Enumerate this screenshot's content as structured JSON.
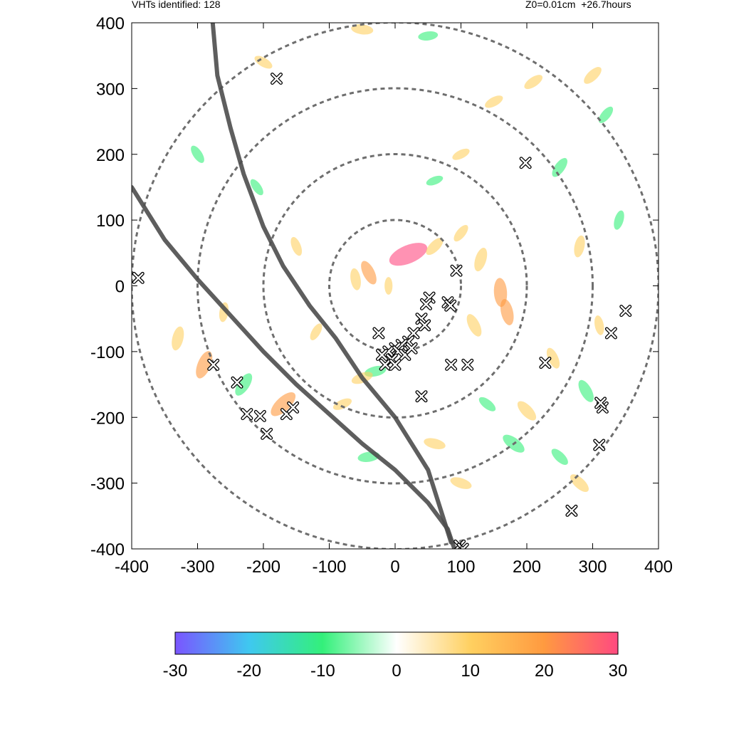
{
  "header": {
    "left": "VHTs identified: 128",
    "right": "Z0=0.01cm  +26.7hours"
  },
  "chart_data": {
    "type": "scatter",
    "title": "",
    "xlabel": "",
    "ylabel": "",
    "xlim": [
      -400,
      400
    ],
    "ylim": [
      -400,
      400
    ],
    "xticks": [
      "-400",
      "-300",
      "-200",
      "-100",
      "0",
      "100",
      "200",
      "300",
      "400"
    ],
    "yticks": [
      "400",
      "300",
      "200",
      "100",
      "0",
      "-100",
      "-200",
      "-300",
      "-400"
    ],
    "range_rings_radius": [
      100,
      200,
      300,
      400
    ],
    "grid": false,
    "colorbar": {
      "min": -30,
      "max": 30,
      "ticks": [
        "-30",
        "-20",
        "-10",
        "0",
        "10",
        "20",
        "30"
      ],
      "colors": [
        "#7a55ff",
        "#3fc8f0",
        "#33f07a",
        "#ffffff",
        "#ffd060",
        "#ff9a40",
        "#ff4a80"
      ]
    },
    "tracks": [
      {
        "x": [
          -277,
          -270,
          -250,
          -230,
          -200,
          -170,
          -130,
          -90,
          -50,
          0,
          50,
          85
        ],
        "y": [
          400,
          320,
          240,
          170,
          90,
          30,
          -30,
          -80,
          -140,
          -200,
          -280,
          -390
        ]
      },
      {
        "x": [
          -400,
          -350,
          -300,
          -250,
          -200,
          -150,
          -100,
          -50,
          0,
          50,
          80,
          90
        ],
        "y": [
          150,
          70,
          10,
          -45,
          -100,
          -150,
          -195,
          -240,
          -280,
          -330,
          -370,
          -400
        ]
      }
    ],
    "vht_markers": {
      "count": 128,
      "points": [
        {
          "x": -180,
          "y": 315
        },
        {
          "x": 198,
          "y": 187
        },
        {
          "x": -390,
          "y": 12
        },
        {
          "x": 93,
          "y": 23
        },
        {
          "x": 52,
          "y": -18
        },
        {
          "x": 47,
          "y": -28
        },
        {
          "x": 80,
          "y": -25
        },
        {
          "x": 84,
          "y": -30
        },
        {
          "x": 40,
          "y": -50
        },
        {
          "x": 45,
          "y": -60
        },
        {
          "x": 28,
          "y": -72
        },
        {
          "x": -25,
          "y": -72
        },
        {
          "x": 20,
          "y": -85
        },
        {
          "x": 10,
          "y": -90
        },
        {
          "x": 0,
          "y": -95
        },
        {
          "x": -10,
          "y": -100
        },
        {
          "x": -20,
          "y": -105
        },
        {
          "x": 5,
          "y": -100
        },
        {
          "x": -5,
          "y": -112
        },
        {
          "x": -15,
          "y": -120
        },
        {
          "x": 15,
          "y": -105
        },
        {
          "x": 25,
          "y": -95
        },
        {
          "x": 0,
          "y": -120
        },
        {
          "x": 85,
          "y": -120
        },
        {
          "x": 110,
          "y": -120
        },
        {
          "x": 228,
          "y": -117
        },
        {
          "x": 350,
          "y": -38
        },
        {
          "x": 328,
          "y": -72
        },
        {
          "x": 40,
          "y": -168
        },
        {
          "x": -276,
          "y": -120
        },
        {
          "x": -240,
          "y": -147
        },
        {
          "x": -225,
          "y": -195
        },
        {
          "x": -205,
          "y": -198
        },
        {
          "x": -195,
          "y": -225
        },
        {
          "x": -165,
          "y": -195
        },
        {
          "x": -155,
          "y": -185
        },
        {
          "x": 315,
          "y": -185
        },
        {
          "x": 312,
          "y": -178
        },
        {
          "x": 310,
          "y": -242
        },
        {
          "x": 268,
          "y": -342
        },
        {
          "x": 98,
          "y": -395
        },
        {
          "x": 103,
          "y": -400
        }
      ]
    },
    "field_patches": [
      {
        "x": 20,
        "y": 48,
        "v": 28
      },
      {
        "x": -40,
        "y": 20,
        "v": 15
      },
      {
        "x": -60,
        "y": 10,
        "v": 12
      },
      {
        "x": 60,
        "y": 60,
        "v": 12
      },
      {
        "x": 100,
        "y": 80,
        "v": 10
      },
      {
        "x": 130,
        "y": 40,
        "v": 14
      },
      {
        "x": 160,
        "y": -10,
        "v": 18
      },
      {
        "x": 170,
        "y": -40,
        "v": 16
      },
      {
        "x": 120,
        "y": -60,
        "v": 14
      },
      {
        "x": -30,
        "y": -130,
        "v": -12
      },
      {
        "x": -50,
        "y": -140,
        "v": 12
      },
      {
        "x": -80,
        "y": -180,
        "v": 10
      },
      {
        "x": -170,
        "y": -180,
        "v": 20
      },
      {
        "x": -230,
        "y": -150,
        "v": -15
      },
      {
        "x": -290,
        "y": -120,
        "v": 18
      },
      {
        "x": -330,
        "y": -80,
        "v": 14
      },
      {
        "x": 240,
        "y": -110,
        "v": 12
      },
      {
        "x": 290,
        "y": -160,
        "v": -14
      },
      {
        "x": 310,
        "y": -60,
        "v": 10
      },
      {
        "x": 280,
        "y": 60,
        "v": 12
      },
      {
        "x": 250,
        "y": 180,
        "v": -12
      },
      {
        "x": 150,
        "y": 280,
        "v": 10
      },
      {
        "x": 50,
        "y": 380,
        "v": -10
      },
      {
        "x": -50,
        "y": 390,
        "v": 12
      },
      {
        "x": -200,
        "y": 340,
        "v": 10
      },
      {
        "x": -300,
        "y": 200,
        "v": -10
      },
      {
        "x": 180,
        "y": -240,
        "v": -15
      },
      {
        "x": 100,
        "y": -300,
        "v": 12
      },
      {
        "x": -40,
        "y": -260,
        "v": -12
      },
      {
        "x": 320,
        "y": 260,
        "v": -10
      },
      {
        "x": 210,
        "y": 310,
        "v": 11
      },
      {
        "x": 100,
        "y": 200,
        "v": 9
      },
      {
        "x": 60,
        "y": 160,
        "v": -8
      },
      {
        "x": -150,
        "y": 60,
        "v": 10
      },
      {
        "x": -120,
        "y": -70,
        "v": 9
      },
      {
        "x": 200,
        "y": -190,
        "v": 14
      },
      {
        "x": 250,
        "y": -260,
        "v": -11
      },
      {
        "x": 280,
        "y": -300,
        "v": 13
      },
      {
        "x": 300,
        "y": 320,
        "v": 12
      },
      {
        "x": 340,
        "y": 100,
        "v": -10
      },
      {
        "x": -260,
        "y": -40,
        "v": 10
      },
      {
        "x": -210,
        "y": 150,
        "v": -9
      },
      {
        "x": 60,
        "y": -240,
        "v": 12
      },
      {
        "x": 140,
        "y": -180,
        "v": -10
      },
      {
        "x": -10,
        "y": 0,
        "v": 8
      }
    ]
  }
}
